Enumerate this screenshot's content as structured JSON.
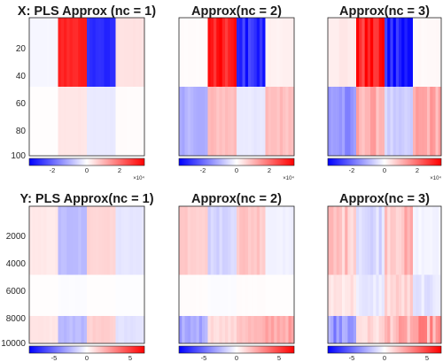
{
  "chart_data": [
    {
      "type": "heatmap",
      "title": "X: PLS Approx (nc = 1)",
      "ylim": [
        1,
        100
      ],
      "yticks": [
        "20",
        "40",
        "60",
        "80",
        "100"
      ],
      "xticks": [],
      "colorbar": {
        "ticks": [
          "-2",
          "0",
          "2"
        ],
        "range": [
          -3.5,
          3.5
        ],
        "exponent": "×10⁴"
      },
      "row_groups": [
        {
          "rows": [
            1,
            50
          ]
        },
        {
          "rows": [
            51,
            100
          ]
        }
      ],
      "column_blocks": [
        {
          "values": [
            -0.12,
            0.03
          ]
        },
        {
          "values": [
            3.0,
            0.35
          ]
        },
        {
          "values": [
            -2.9,
            -0.3
          ]
        },
        {
          "values": [
            0.4,
            0.05
          ]
        }
      ]
    },
    {
      "type": "heatmap",
      "title": "Approx(nc = 2)",
      "ylim": [
        1,
        100
      ],
      "yticks": [],
      "xticks": [],
      "colorbar": {
        "ticks": [
          "-2",
          "0",
          "2"
        ],
        "range": [
          -3.5,
          3.5
        ],
        "exponent": "×10⁴"
      },
      "row_groups": [
        {
          "rows": [
            1,
            50
          ]
        },
        {
          "rows": [
            51,
            100
          ]
        }
      ],
      "column_blocks": [
        {
          "values": [
            0.05,
            -1.1
          ]
        },
        {
          "values": [
            3.0,
            0.9
          ]
        },
        {
          "values": [
            -2.9,
            -0.3
          ]
        },
        {
          "values": [
            0.2,
            0.9
          ]
        }
      ]
    },
    {
      "type": "heatmap",
      "title": "Approx(nc = 3)",
      "ylim": [
        1,
        100
      ],
      "yticks": [],
      "xticks": [],
      "colorbar": {
        "ticks": [
          "-2",
          "0",
          "2"
        ],
        "range": [
          -3.5,
          3.5
        ],
        "exponent": "×10⁴"
      },
      "row_groups": [
        {
          "rows": [
            1,
            50
          ]
        },
        {
          "rows": [
            51,
            100
          ]
        }
      ],
      "column_blocks": [
        {
          "values": [
            0.3,
            -1.4
          ]
        },
        {
          "values": [
            3.2,
            1.1
          ]
        },
        {
          "values": [
            -3.0,
            -0.6
          ]
        },
        {
          "values": [
            0.1,
            1.2
          ]
        }
      ]
    },
    {
      "type": "heatmap",
      "title": "Y: PLS Approx(nc = 1)",
      "ylim": [
        1,
        10000
      ],
      "yticks": [
        "2000",
        "4000",
        "6000",
        "8000",
        "10000"
      ],
      "xticks": [],
      "colorbar": {
        "ticks": [
          "-5",
          "0",
          "5"
        ],
        "range": [
          -7,
          7
        ]
      },
      "row_groups": [
        {
          "rows": [
            1,
            5000
          ]
        },
        {
          "rows": [
            5001,
            8000
          ]
        },
        {
          "rows": [
            8001,
            10000
          ]
        }
      ],
      "column_blocks": [
        {
          "values": [
            0.6,
            0.05,
            0.7
          ]
        },
        {
          "values": [
            -1.8,
            -0.1,
            -1.9
          ]
        },
        {
          "values": [
            1.2,
            0.05,
            1.3
          ]
        },
        {
          "values": [
            -0.7,
            -0.05,
            -0.8
          ]
        }
      ]
    },
    {
      "type": "heatmap",
      "title": "Approx(nc = 2)",
      "ylim": [
        1,
        10000
      ],
      "yticks": [],
      "xticks": [],
      "colorbar": {
        "ticks": [
          "-5",
          "0",
          "5"
        ],
        "range": [
          -7,
          7
        ]
      },
      "row_groups": [
        {
          "rows": [
            1,
            5000
          ]
        },
        {
          "rows": [
            5001,
            8000
          ]
        },
        {
          "rows": [
            8001,
            10000
          ]
        }
      ],
      "column_blocks": [
        {
          "values": [
            1.5,
            0.1,
            -2.4
          ]
        },
        {
          "values": [
            -1.2,
            -0.1,
            1.0
          ]
        },
        {
          "values": [
            1.6,
            0.1,
            1.8
          ]
        },
        {
          "values": [
            -0.4,
            0.05,
            2.4
          ]
        }
      ]
    },
    {
      "type": "heatmap",
      "title": "Approx(nc = 3)",
      "ylim": [
        1,
        10000
      ],
      "yticks": [],
      "xticks": [],
      "colorbar": {
        "ticks": [
          "-5",
          "0",
          "5"
        ],
        "range": [
          -7,
          7
        ]
      },
      "row_groups": [
        {
          "rows": [
            1,
            5000
          ]
        },
        {
          "rows": [
            5001,
            8000
          ]
        },
        {
          "rows": [
            8001,
            10000
          ]
        }
      ],
      "column_blocks": [
        {
          "values": [
            1.6,
            0.8,
            -2.8
          ]
        },
        {
          "values": [
            -1.1,
            -0.6,
            1.0
          ]
        },
        {
          "values": [
            1.8,
            1.1,
            2.0
          ]
        },
        {
          "values": [
            -0.3,
            -0.7,
            2.6
          ]
        }
      ]
    }
  ]
}
